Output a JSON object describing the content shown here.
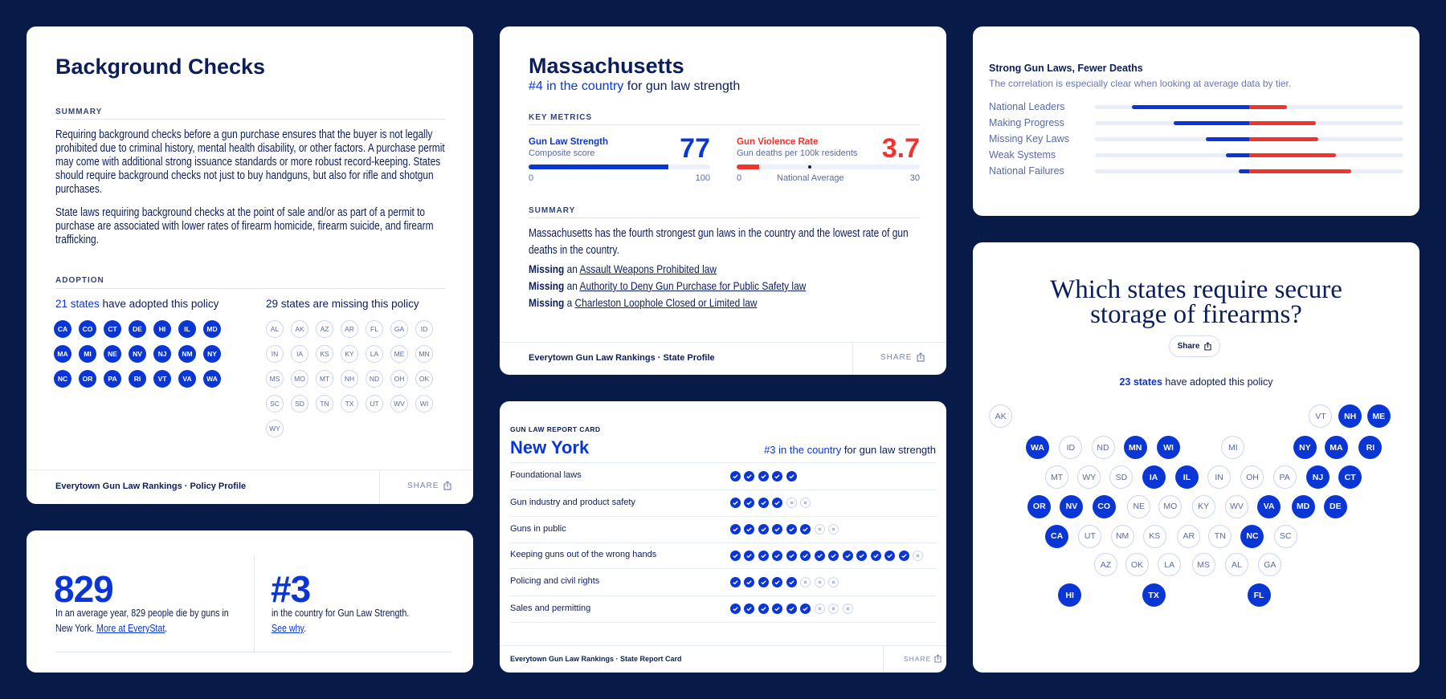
{
  "colors": {
    "background": "#081a48",
    "navy": "#0c1d5c",
    "blue": "#0b36d6",
    "red": "#f2322d",
    "light_line": "#dbe2f6"
  },
  "icons": {
    "share": "share-icon",
    "pass": "check-circle-icon",
    "fail": "x-circle-icon"
  },
  "policy_card": {
    "title": "Background Checks",
    "summary_label": "SUMMARY",
    "paragraphs": [
      "Requiring background checks before a gun purchase ensures that the buyer is not legally prohibited due to criminal history, mental health disability, or other factors. A purchase permit may come with additional strong issuance standards or more robust record-keeping. States should require background checks not just to buy handguns, but also for rifle and shotgun purchases.",
      "State laws requiring background checks at the point of sale and/or as part of a permit to purchase are associated with lower rates of firearm homicide, firearm suicide, and firearm trafficking."
    ],
    "adoption_label": "ADOPTION",
    "adopted_count": "21 states",
    "adopted_suffix": " have adopted this policy",
    "missing_heading": "29 states are missing this policy",
    "adopted_states": [
      "CA",
      "CO",
      "CT",
      "DE",
      "HI",
      "IL",
      "MD",
      "MA",
      "MI",
      "NE",
      "NV",
      "NJ",
      "NM",
      "NY",
      "NC",
      "OR",
      "PA",
      "RI",
      "VT",
      "VA",
      "WA"
    ],
    "missing_states": [
      "AL",
      "AK",
      "AZ",
      "AR",
      "FL",
      "GA",
      "ID",
      "IN",
      "IA",
      "KS",
      "KY",
      "LA",
      "ME",
      "MN",
      "MS",
      "MO",
      "MT",
      "NH",
      "ND",
      "OH",
      "OK",
      "SC",
      "SD",
      "TN",
      "TX",
      "UT",
      "WV",
      "WI",
      "WY"
    ],
    "footer": "Everytown Gun Law Rankings · Policy Profile",
    "share": "SHARE"
  },
  "state_profile": {
    "title": "Massachusetts",
    "rank_highlight": "#4 in the country",
    "rank_suffix": " for gun law strength",
    "key_metrics_label": "KEY METRICS",
    "strength": {
      "label": "Gun Law Strength",
      "sublabel": "Composite score",
      "value": "77",
      "value_num": 77,
      "min": "0",
      "max": "100",
      "max_num": 100
    },
    "violence": {
      "label": "Gun Violence Rate",
      "sublabel": "Gun deaths per 100k residents",
      "value": "3.7",
      "value_num": 3.7,
      "min": "0",
      "max": "30",
      "max_num": 30,
      "national_average_label": "National Average",
      "national_average": 12
    },
    "summary_label": "SUMMARY",
    "summary": "Massachusetts has the fourth strongest gun laws in the country and the lowest rate of gun deaths in the country.",
    "missing": [
      {
        "prefix": "Missing",
        "article": " an ",
        "law": "Assault Weapons Prohibited law"
      },
      {
        "prefix": "Missing",
        "article": " an ",
        "law": "Authority to Deny Gun Purchase for Public Safety law"
      },
      {
        "prefix": "Missing",
        "article": " a ",
        "law": "Charleston Loophole Closed or Limited law"
      }
    ],
    "footer": "Everytown Gun Law Rankings · State Profile",
    "share": "SHARE"
  },
  "tiers_card": {
    "title": "Strong Gun Laws, Fewer Deaths",
    "subtitle": "The correlation is especially clear when looking at average data by tier.",
    "tiers": [
      {
        "label": "National Leaders",
        "law_strength": 0.76,
        "gun_deaths": 0.245
      },
      {
        "label": "Making Progress",
        "law_strength": 0.49,
        "gun_deaths": 0.43
      },
      {
        "label": "Missing Key Laws",
        "law_strength": 0.28,
        "gun_deaths": 0.45
      },
      {
        "label": "Weak Systems",
        "law_strength": 0.15,
        "gun_deaths": 0.56
      },
      {
        "label": "National Failures",
        "law_strength": 0.07,
        "gun_deaths": 0.66
      }
    ]
  },
  "stats_card": {
    "deaths_value": "829",
    "deaths_text": "In an average year, 829 people die by guns in New York. ",
    "deaths_link": "More at EveryStat",
    "rank_value": "#3",
    "rank_text": "in the country for Gun Law Strength. ",
    "rank_link": "See why",
    "period": "."
  },
  "report_card": {
    "label": "GUN LAW REPORT CARD",
    "title": "New York",
    "rank_highlight": "#3 in the country",
    "rank_suffix": " for gun law strength",
    "rows": [
      {
        "label": "Foundational laws",
        "passed": 5,
        "failed": 0
      },
      {
        "label": "Gun industry and product safety",
        "passed": 4,
        "failed": 2
      },
      {
        "label": "Guns in public",
        "passed": 6,
        "failed": 2
      },
      {
        "label": "Keeping guns out of the wrong hands",
        "passed": 13,
        "failed": 1
      },
      {
        "label": "Policing and civil rights",
        "passed": 5,
        "failed": 3
      },
      {
        "label": "Sales and permitting",
        "passed": 6,
        "failed": 3
      }
    ],
    "footer": "Everytown Gun Law Rankings · State Report Card",
    "share": "SHARE"
  },
  "storage_map": {
    "title_line1": "Which states require secure",
    "title_line2": "storage of firearms?",
    "share": "Share",
    "adopted_count": "23 states",
    "adopted_suffix": " have adopted this policy",
    "states": [
      {
        "code": "AK",
        "adopted": false
      },
      {
        "code": "VT",
        "adopted": false
      },
      {
        "code": "NH",
        "adopted": true
      },
      {
        "code": "ME",
        "adopted": true
      },
      {
        "code": "WA",
        "adopted": true
      },
      {
        "code": "ID",
        "adopted": false
      },
      {
        "code": "ND",
        "adopted": false
      },
      {
        "code": "MN",
        "adopted": true
      },
      {
        "code": "WI",
        "adopted": true
      },
      {
        "code": "MI",
        "adopted": false
      },
      {
        "code": "NY",
        "adopted": true
      },
      {
        "code": "MA",
        "adopted": true
      },
      {
        "code": "RI",
        "adopted": true
      },
      {
        "code": "MT",
        "adopted": false
      },
      {
        "code": "WY",
        "adopted": false
      },
      {
        "code": "SD",
        "adopted": false
      },
      {
        "code": "IA",
        "adopted": true
      },
      {
        "code": "IL",
        "adopted": true
      },
      {
        "code": "IN",
        "adopted": false
      },
      {
        "code": "OH",
        "adopted": false
      },
      {
        "code": "PA",
        "adopted": false
      },
      {
        "code": "NJ",
        "adopted": true
      },
      {
        "code": "CT",
        "adopted": true
      },
      {
        "code": "OR",
        "adopted": true
      },
      {
        "code": "NV",
        "adopted": true
      },
      {
        "code": "CO",
        "adopted": true
      },
      {
        "code": "NE",
        "adopted": false
      },
      {
        "code": "MO",
        "adopted": false
      },
      {
        "code": "KY",
        "adopted": false
      },
      {
        "code": "WV",
        "adopted": false
      },
      {
        "code": "VA",
        "adopted": true
      },
      {
        "code": "MD",
        "adopted": true
      },
      {
        "code": "DE",
        "adopted": true
      },
      {
        "code": "CA",
        "adopted": true
      },
      {
        "code": "UT",
        "adopted": false
      },
      {
        "code": "NM",
        "adopted": false
      },
      {
        "code": "KS",
        "adopted": false
      },
      {
        "code": "AR",
        "adopted": false
      },
      {
        "code": "TN",
        "adopted": false
      },
      {
        "code": "NC",
        "adopted": true
      },
      {
        "code": "SC",
        "adopted": false
      },
      {
        "code": "AZ",
        "adopted": false
      },
      {
        "code": "OK",
        "adopted": false
      },
      {
        "code": "LA",
        "adopted": false
      },
      {
        "code": "MS",
        "adopted": false
      },
      {
        "code": "AL",
        "adopted": false
      },
      {
        "code": "GA",
        "adopted": false
      },
      {
        "code": "HI",
        "adopted": true
      },
      {
        "code": "TX",
        "adopted": true
      },
      {
        "code": "FL",
        "adopted": true
      }
    ]
  }
}
